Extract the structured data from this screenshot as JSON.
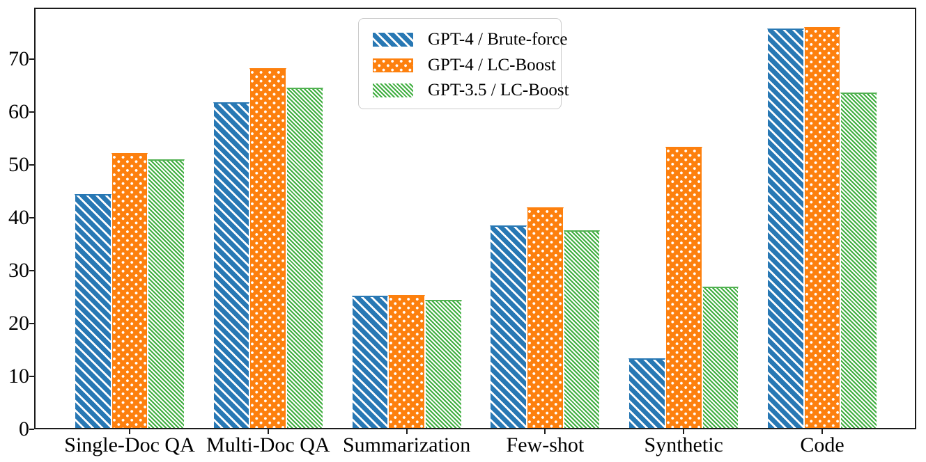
{
  "chart_data": {
    "type": "bar",
    "title": "",
    "xlabel": "",
    "ylabel": "",
    "categories": [
      "Single-Doc QA",
      "Multi-Doc QA",
      "Summarization",
      "Few-shot",
      "Synthetic",
      "Code"
    ],
    "series": [
      {
        "name": "GPT-4 / Brute-force",
        "color": "#2878b4",
        "hatch": "white-diagonal-stripes",
        "values": [
          44.2,
          61.5,
          25.0,
          38.3,
          13.2,
          75.5
        ]
      },
      {
        "name": "GPT-4 / LC-Boost",
        "color": "#fd800e",
        "hatch": "white-dots",
        "values": [
          52.0,
          68.0,
          25.1,
          41.7,
          53.1,
          75.7
        ]
      },
      {
        "name": "GPT-3.5 / LC-Boost",
        "color": "#3fae3f",
        "hatch": "white-fine-diagonal-stripes",
        "values": [
          50.8,
          64.3,
          24.2,
          37.4,
          26.7,
          63.4
        ]
      }
    ],
    "yticks": [
      0,
      10,
      20,
      30,
      40,
      50,
      60,
      70
    ],
    "ylim": [
      0,
      79.7
    ],
    "grid": false,
    "legend_position": "upper-center",
    "hatch_color": "#ffffff",
    "spine_color": "#1c1c1c"
  }
}
